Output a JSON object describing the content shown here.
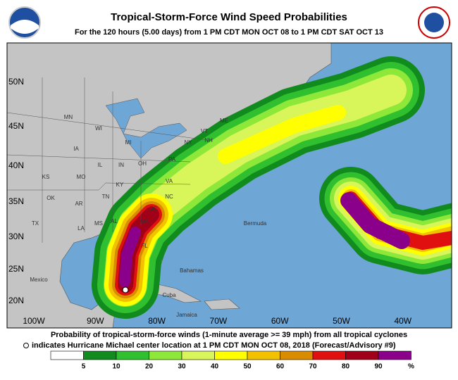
{
  "header": {
    "title": "Tropical-Storm-Force Wind Speed Probabilities",
    "subtitle": "For the 120 hours (5.00 days) from 1 PM CDT MON OCT 08 to 1 PM CDT SAT OCT 13"
  },
  "map": {
    "lat_labels": [
      "50N",
      "45N",
      "40N",
      "35N",
      "30N",
      "25N",
      "20N"
    ],
    "lon_labels": [
      "100W",
      "90W",
      "80W",
      "70W",
      "60W",
      "50W",
      "40W"
    ],
    "places": [
      "MN",
      "WI",
      "MI",
      "IA",
      "IL",
      "IN",
      "OH",
      "PA",
      "NY",
      "VT",
      "NH",
      "ME",
      "KS",
      "MO",
      "KY",
      "VA",
      "OK",
      "AR",
      "TN",
      "NC",
      "SC",
      "GA",
      "AL",
      "MS",
      "LA",
      "TX",
      "FL",
      "Bermuda",
      "Mexico",
      "Bahamas",
      "Cuba",
      "Jamaica"
    ]
  },
  "footer": {
    "line1": "Probability of tropical-storm-force winds (1-minute average >= 39 mph) from all tropical cyclones",
    "line2": "indicates Hurricane Michael center location at 1 PM CDT MON OCT 08, 2018 (Forecast/Advisory #9)"
  },
  "legend": {
    "labels": [
      5,
      10,
      20,
      30,
      40,
      50,
      60,
      70,
      80,
      90,
      "%"
    ],
    "colors": [
      "#ffffff",
      "#118a1e",
      "#2fbf2f",
      "#8ee83a",
      "#d8f55a",
      "#ffff00",
      "#f2c200",
      "#d98c00",
      "#e01010",
      "#a00018",
      "#8a008a"
    ]
  }
}
